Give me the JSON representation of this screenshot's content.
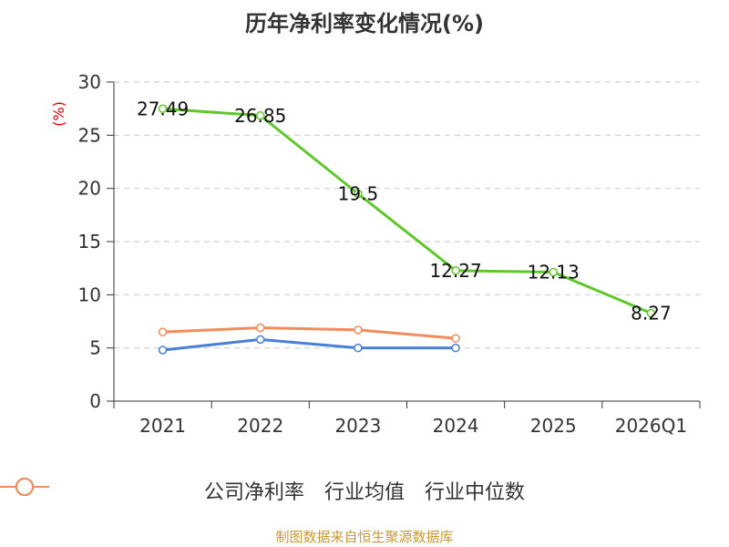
{
  "chart_data": {
    "type": "line",
    "title": "历年净利率变化情况(%)",
    "ylabel": "(%)",
    "categories": [
      "2021",
      "2022",
      "2023",
      "2024",
      "2025",
      "2026Q1"
    ],
    "ylim": [
      0,
      30
    ],
    "yticks": [
      0,
      5,
      10,
      15,
      20,
      25,
      30
    ],
    "grid": true,
    "legend_position": "bottom",
    "series": [
      {
        "name": "公司净利率",
        "color": "#5ec72a",
        "values": [
          27.49,
          26.85,
          19.5,
          12.27,
          12.13,
          8.27
        ],
        "labels": [
          "27.49",
          "26.85",
          "19.5",
          "12.27",
          "12.13",
          "8.27"
        ]
      },
      {
        "name": "行业均值",
        "color": "#4a7fd6",
        "values": [
          4.8,
          5.8,
          5.0,
          5.0,
          null,
          null
        ]
      },
      {
        "name": "行业中位数",
        "color": "#f28c5b",
        "values": [
          6.5,
          6.9,
          6.7,
          5.9,
          null,
          null
        ]
      }
    ]
  },
  "footer": {
    "source": "制图数据来自恒生聚源数据库"
  }
}
